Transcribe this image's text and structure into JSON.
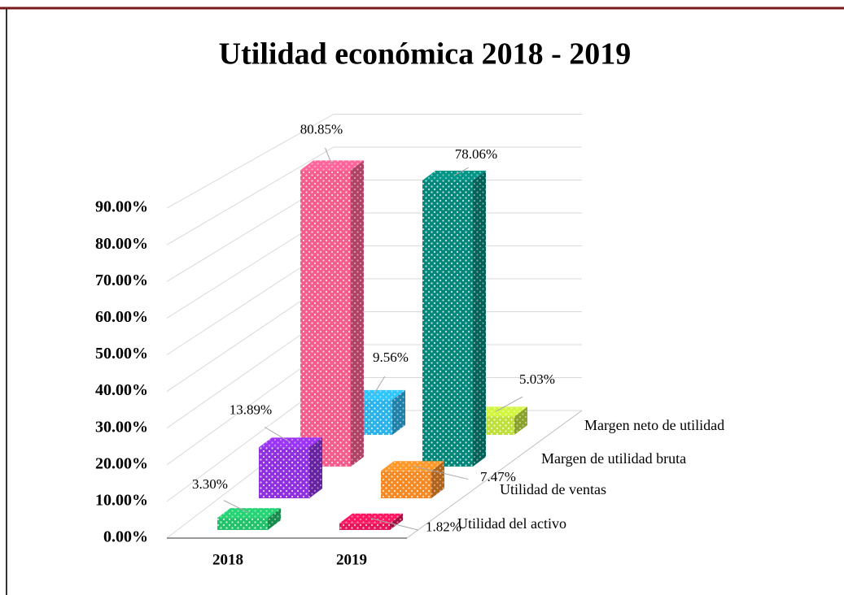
{
  "chart_data": {
    "type": "bar3d",
    "title": "Utilidad económica 2018 - 2019",
    "categories": [
      "2018",
      "2019"
    ],
    "series": [
      {
        "name": "Utilidad del activo",
        "colors": [
          "#22c26a",
          "#e8145a"
        ],
        "values": [
          3.3,
          1.82
        ],
        "value_labels": [
          "3.30%",
          "1.82%"
        ]
      },
      {
        "name": "Utilidad de ventas",
        "colors": [
          "#8e2fe0",
          "#f58a25"
        ],
        "values": [
          13.89,
          7.47
        ],
        "value_labels": [
          "13.89%",
          "7.47%"
        ]
      },
      {
        "name": "Margen de utilidad bruta",
        "colors": [
          "#f45c8c",
          "#00877a"
        ],
        "values": [
          80.85,
          78.06
        ],
        "value_labels": [
          "80.85%",
          "78.06%"
        ]
      },
      {
        "name": "Margen neto de utilidad",
        "colors": [
          "#2bb3ea",
          "#bfe03a"
        ],
        "values": [
          9.56,
          5.03
        ],
        "value_labels": [
          "9.56%",
          "5.03%"
        ]
      }
    ],
    "ylim": [
      0,
      100
    ],
    "yticks": [
      {
        "value": 0,
        "label": "0.00%"
      },
      {
        "value": 10,
        "label": "10.00%"
      },
      {
        "value": 20,
        "label": "20.00%"
      },
      {
        "value": 30,
        "label": "30.00%"
      },
      {
        "value": 40,
        "label": "40.00%"
      },
      {
        "value": 50,
        "label": "50.00%"
      },
      {
        "value": 60,
        "label": "60.00%"
      },
      {
        "value": 70,
        "label": "70.00%"
      },
      {
        "value": 80,
        "label": "80.00%"
      },
      {
        "value": 90,
        "label": "90.00%"
      }
    ],
    "grid": true
  }
}
